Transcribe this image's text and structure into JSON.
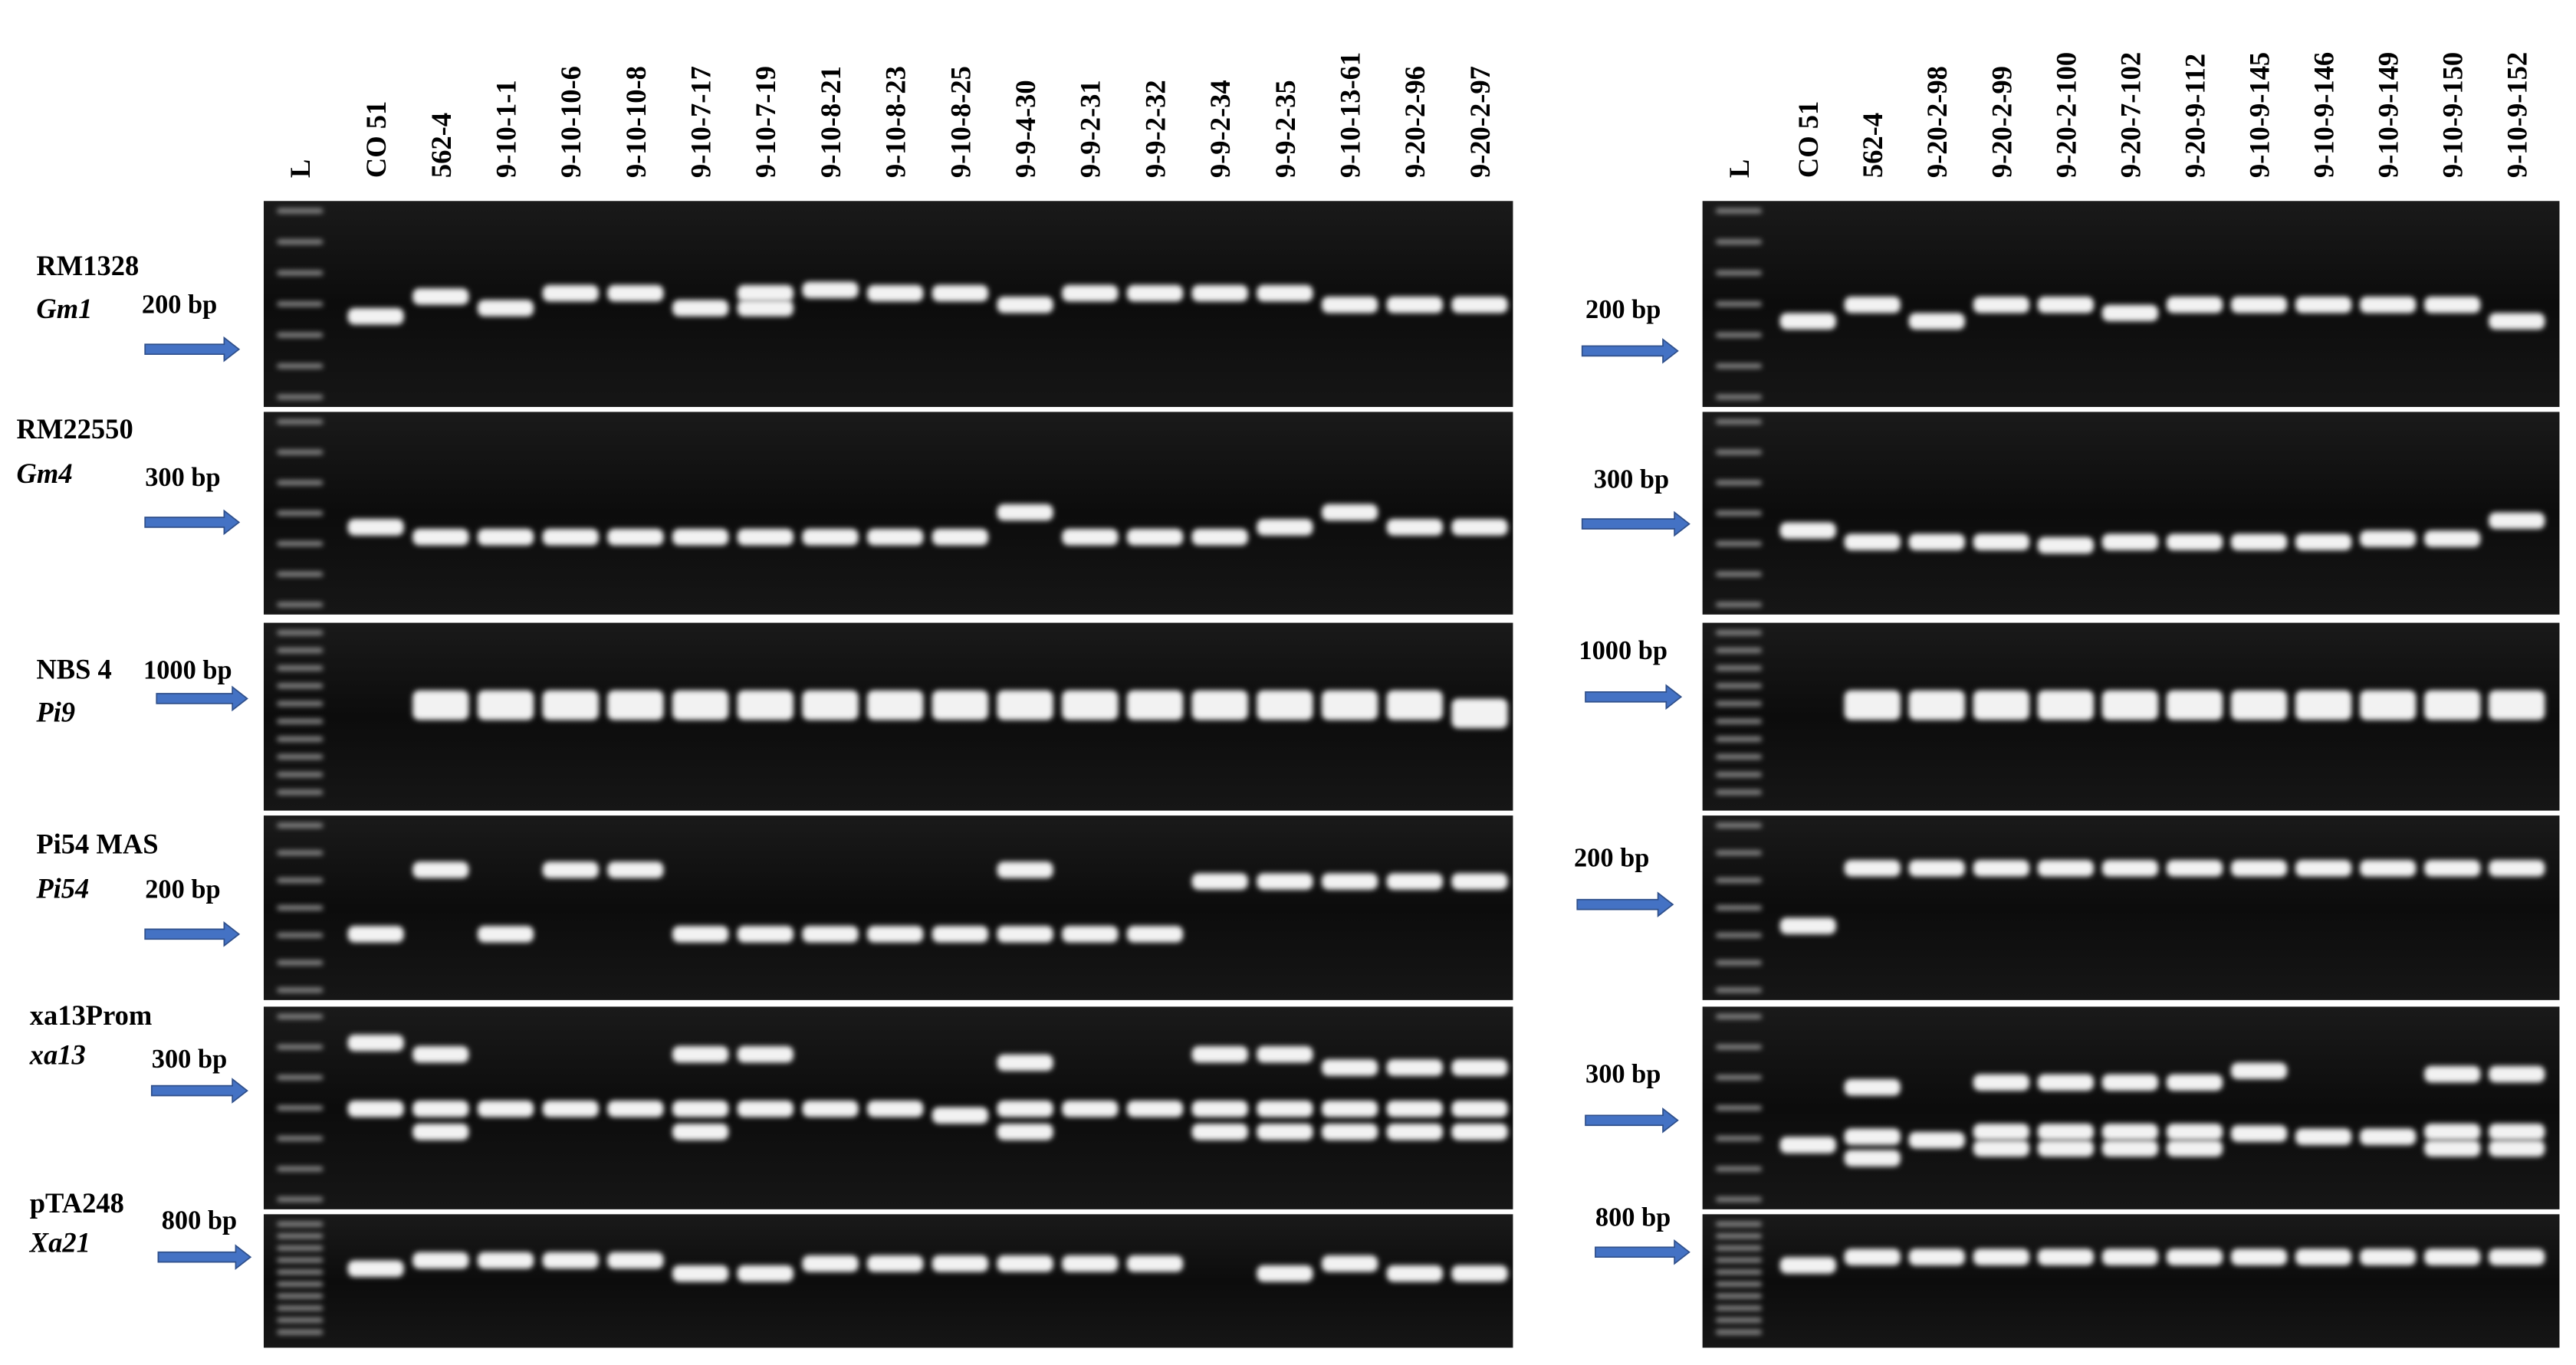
{
  "left_panel": {
    "lanes": [
      "L",
      "CO 51",
      "562-4",
      "9-10-1-1",
      "9-10-10-6",
      "9-10-10-8",
      "9-10-7-17",
      "9-10-7-19",
      "9-10-8-21",
      "9-10-8-23",
      "9-10-8-25",
      "9-9-4-30",
      "9-9-2-31",
      "9-9-2-32",
      "9-9-2-34",
      "9-9-2-35",
      "9-10-13-61",
      "9-20-2-96",
      "9-20-2-97"
    ],
    "rows": [
      {
        "marker": "RM1328",
        "gene": "Gm1",
        "size": "200 bp"
      },
      {
        "marker": "RM22550",
        "gene": "Gm4",
        "size": "300 bp"
      },
      {
        "marker": "NBS 4",
        "gene": "Pi9",
        "size": "1000 bp"
      },
      {
        "marker": "Pi54 MAS",
        "gene": "Pi54",
        "size": "200 bp"
      },
      {
        "marker": "xa13Prom",
        "gene": "xa13",
        "size": "300 bp"
      },
      {
        "marker": "pTA248",
        "gene": "Xa21",
        "size": "800 bp"
      }
    ]
  },
  "right_panel": {
    "lanes": [
      "L",
      "CO 51",
      "562-4",
      "9-20-2-98",
      "9-20-2-99",
      "9-20-2-100",
      "9-20-7-102",
      "9-20-9-112",
      "9-10-9-145",
      "9-10-9-146",
      "9-10-9-149",
      "9-10-9-150",
      "9-10-9-152"
    ],
    "rows": [
      {
        "size": "200 bp"
      },
      {
        "size": "300 bp"
      },
      {
        "size": "1000 bp"
      },
      {
        "size": "200 bp"
      },
      {
        "size": "300 bp"
      },
      {
        "size": "800 bp"
      }
    ]
  }
}
